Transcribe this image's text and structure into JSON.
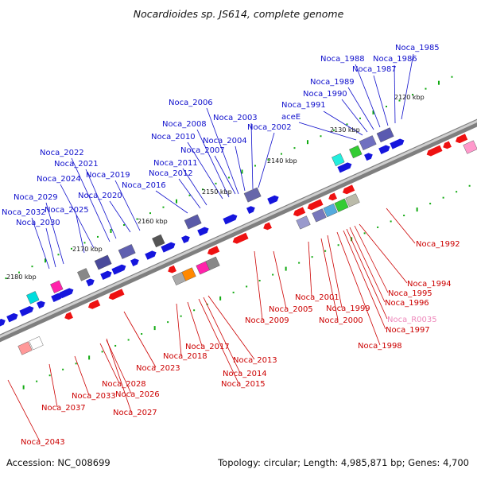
{
  "title": "Nocardioides sp. JS614, complete genome",
  "footer": {
    "accession": "Accession: NC_008699",
    "summary": "Topology: circular; Length: 4,985,871 bp; Genes: 4,700"
  },
  "colors": {
    "forward_label": "#1010cc",
    "reverse_label": "#cc0000",
    "rna_label": "#ee88bb",
    "backbone": "#9a9a9a",
    "tick": "#11aa11"
  },
  "ticks": [
    {
      "label": "2120 kbp"
    },
    {
      "label": "2130 kbp"
    },
    {
      "label": "2140 kbp"
    },
    {
      "label": "2150 kbp"
    },
    {
      "label": "2160 kbp"
    },
    {
      "label": "2170 kbp"
    },
    {
      "label": "2180 kbp"
    }
  ],
  "forward_genes": [
    {
      "label": "Noca_1985"
    },
    {
      "label": "Noca_1986"
    },
    {
      "label": "Noca_1987"
    },
    {
      "label": "Noca_1988"
    },
    {
      "label": "Noca_1989"
    },
    {
      "label": "Noca_1990"
    },
    {
      "label": "Noca_1991"
    },
    {
      "label": "aceE"
    },
    {
      "label": "Noca_2002"
    },
    {
      "label": "Noca_2003"
    },
    {
      "label": "Noca_2004"
    },
    {
      "label": "Noca_2006"
    },
    {
      "label": "Noca_2007"
    },
    {
      "label": "Noca_2008"
    },
    {
      "label": "Noca_2010"
    },
    {
      "label": "Noca_2011"
    },
    {
      "label": "Noca_2012"
    },
    {
      "label": "Noca_2016"
    },
    {
      "label": "Noca_2019"
    },
    {
      "label": "Noca_2020"
    },
    {
      "label": "Noca_2021"
    },
    {
      "label": "Noca_2022"
    },
    {
      "label": "Noca_2024"
    },
    {
      "label": "Noca_2025"
    },
    {
      "label": "Noca_2029"
    },
    {
      "label": "Noca_2030"
    },
    {
      "label": "Noca_2032"
    }
  ],
  "reverse_genes": [
    {
      "label": "Noca_1992"
    },
    {
      "label": "Noca_1994"
    },
    {
      "label": "Noca_1995"
    },
    {
      "label": "Noca_1996"
    },
    {
      "label": "Noca_R0035"
    },
    {
      "label": "Noca_1997"
    },
    {
      "label": "Noca_1998"
    },
    {
      "label": "Noca_1999"
    },
    {
      "label": "Noca_2000"
    },
    {
      "label": "Noca_2001"
    },
    {
      "label": "Noca_2005"
    },
    {
      "label": "Noca_2009"
    },
    {
      "label": "Noca_2013"
    },
    {
      "label": "Noca_2014"
    },
    {
      "label": "Noca_2015"
    },
    {
      "label": "Noca_2017"
    },
    {
      "label": "Noca_2018"
    },
    {
      "label": "Noca_2023"
    },
    {
      "label": "Noca_2026"
    },
    {
      "label": "Noca_2027"
    },
    {
      "label": "Noca_2028"
    },
    {
      "label": "Noca_2033"
    },
    {
      "label": "Noca_2037"
    },
    {
      "label": "Noca_2043"
    }
  ]
}
